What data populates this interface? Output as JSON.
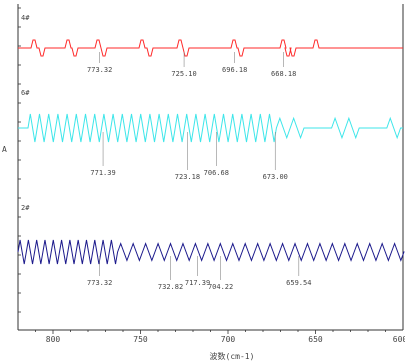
{
  "chart_data": {
    "type": "line",
    "title": "",
    "xlabel": "波数(cm-1)",
    "ylabel": "A",
    "xlim": [
      820,
      600
    ],
    "x_reversed": true,
    "x_ticks": [
      "800",
      "750",
      "700",
      "650",
      "600"
    ],
    "x_tick_values": [
      800,
      750,
      700,
      650,
      600
    ],
    "grid": false,
    "legend": "none",
    "series": [
      {
        "name": "",
        "trace_label": "4#",
        "color": "#ff2a2a",
        "style": "sparse",
        "peaks": [
          {
            "x": 773.32,
            "label": "773.32"
          },
          {
            "x": 725.1,
            "label": "725.10"
          },
          {
            "x": 696.18,
            "label": "696.18"
          },
          {
            "x": 668.18,
            "label": "668.18"
          }
        ]
      },
      {
        "name": "",
        "trace_label": "6#",
        "color": "#3ee6ea",
        "style": "dense",
        "peaks": [
          {
            "x": 771.39,
            "label": "771.39"
          },
          {
            "x": 723.18,
            "label": "723.18"
          },
          {
            "x": 706.68,
            "label": "706.68"
          },
          {
            "x": 673.0,
            "label": "673.00"
          }
        ]
      },
      {
        "name": "",
        "trace_label": "2#",
        "color": "#1c1a8c",
        "style": "dense",
        "peaks": [
          {
            "x": 773.32,
            "label": "773.32"
          },
          {
            "x": 732.82,
            "label": "732.82"
          },
          {
            "x": 717.39,
            "label": "717.39"
          },
          {
            "x": 704.22,
            "label": "704.22"
          },
          {
            "x": 659.54,
            "label": "659.54"
          }
        ]
      }
    ]
  }
}
